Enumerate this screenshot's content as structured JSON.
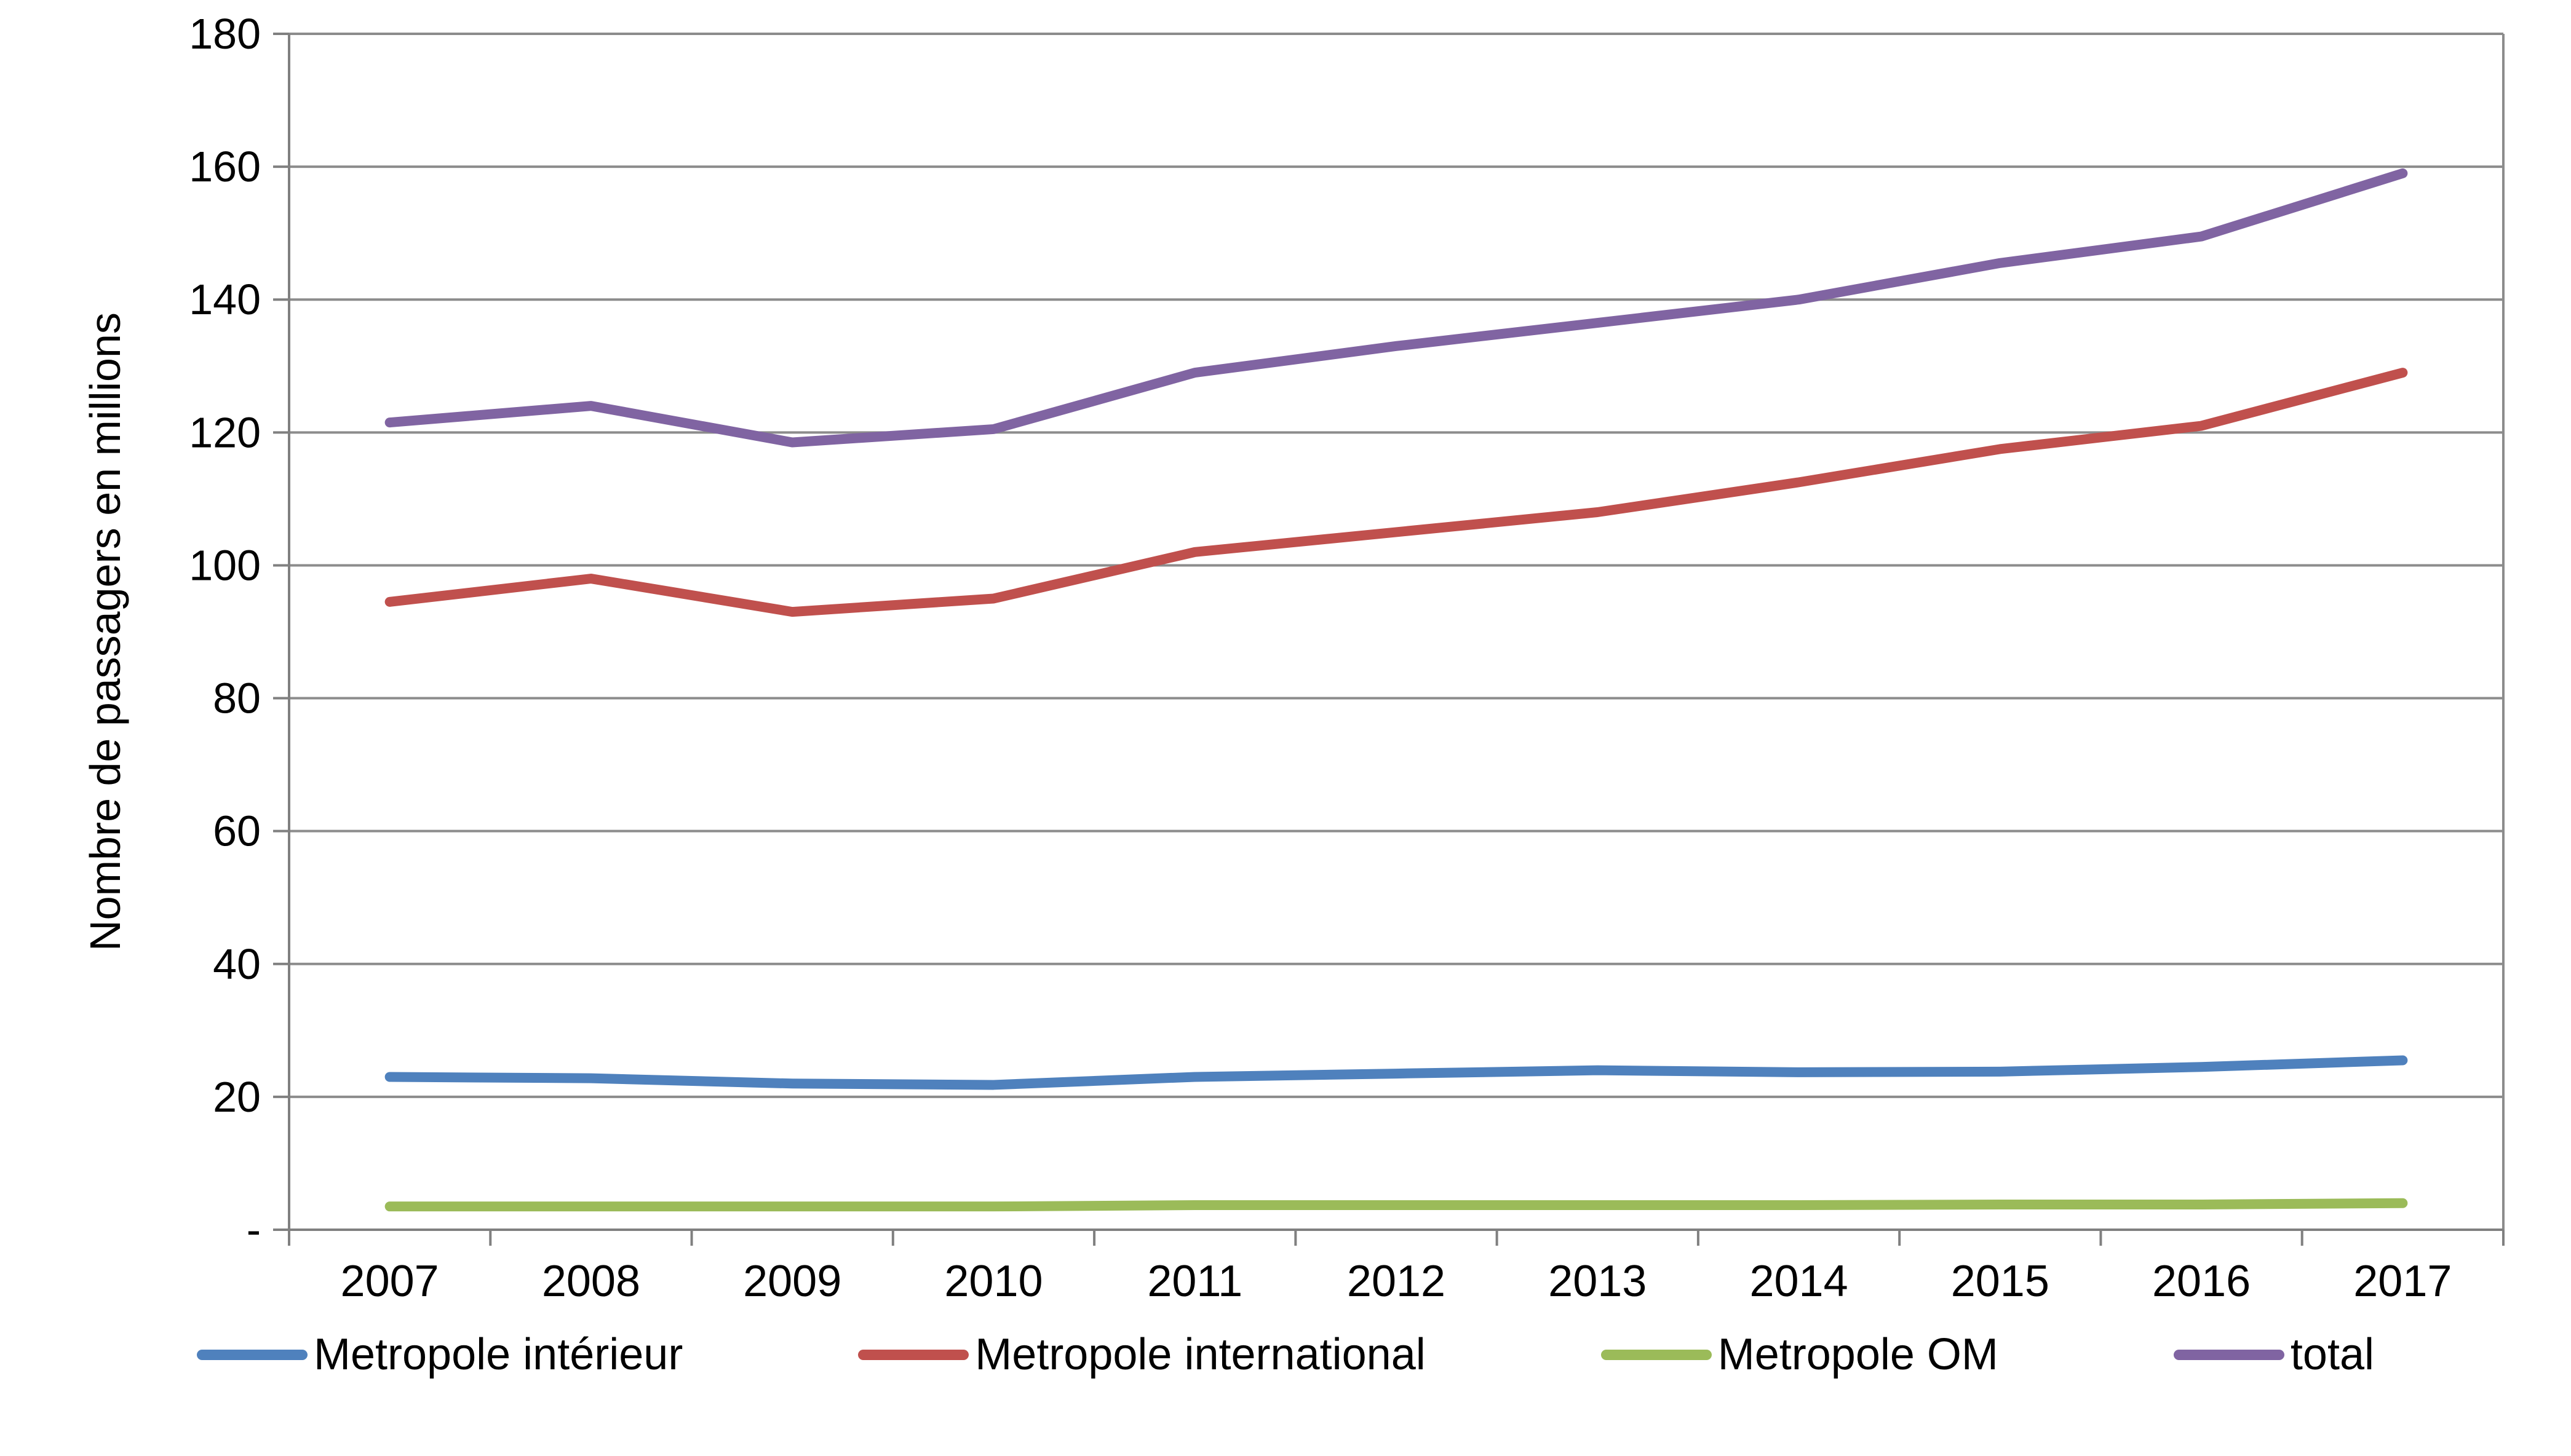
{
  "chart_data": {
    "type": "line",
    "title": "",
    "xlabel": "",
    "ylabel": "Nombre de passagers en millions",
    "ylim": [
      0,
      180
    ],
    "y_tick_step": 20,
    "y_tick_labels": [
      "-",
      "20",
      "40",
      "60",
      "80",
      "100",
      "120",
      "140",
      "160",
      "180"
    ],
    "grid": "horizontal",
    "legend_position": "bottom",
    "categories": [
      "2007",
      "2008",
      "2009",
      "2010",
      "2011",
      "2012",
      "2013",
      "2014",
      "2015",
      "2016",
      "2017"
    ],
    "series": [
      {
        "name": "Metropole intérieur",
        "color": "#4F81BD",
        "values": [
          23,
          22.8,
          22,
          21.8,
          23,
          23.5,
          24,
          23.7,
          23.8,
          24.5,
          25.5
        ]
      },
      {
        "name": "Metropole international",
        "color": "#C0504D",
        "values": [
          94.5,
          98,
          93,
          95,
          102,
          105,
          108,
          112.5,
          117.5,
          121,
          129
        ]
      },
      {
        "name": "Metropole OM",
        "color": "#9BBB59",
        "values": [
          3.5,
          3.5,
          3.5,
          3.5,
          3.7,
          3.7,
          3.7,
          3.7,
          3.8,
          3.8,
          4
        ]
      },
      {
        "name": "total",
        "color": "#8064A2",
        "values": [
          121.5,
          124,
          118.5,
          120.5,
          129,
          133,
          136.5,
          140,
          145.5,
          149.5,
          159
        ]
      }
    ],
    "axis_color": "#808080",
    "grid_color": "#8C8C8C",
    "text_color": "#000000"
  }
}
